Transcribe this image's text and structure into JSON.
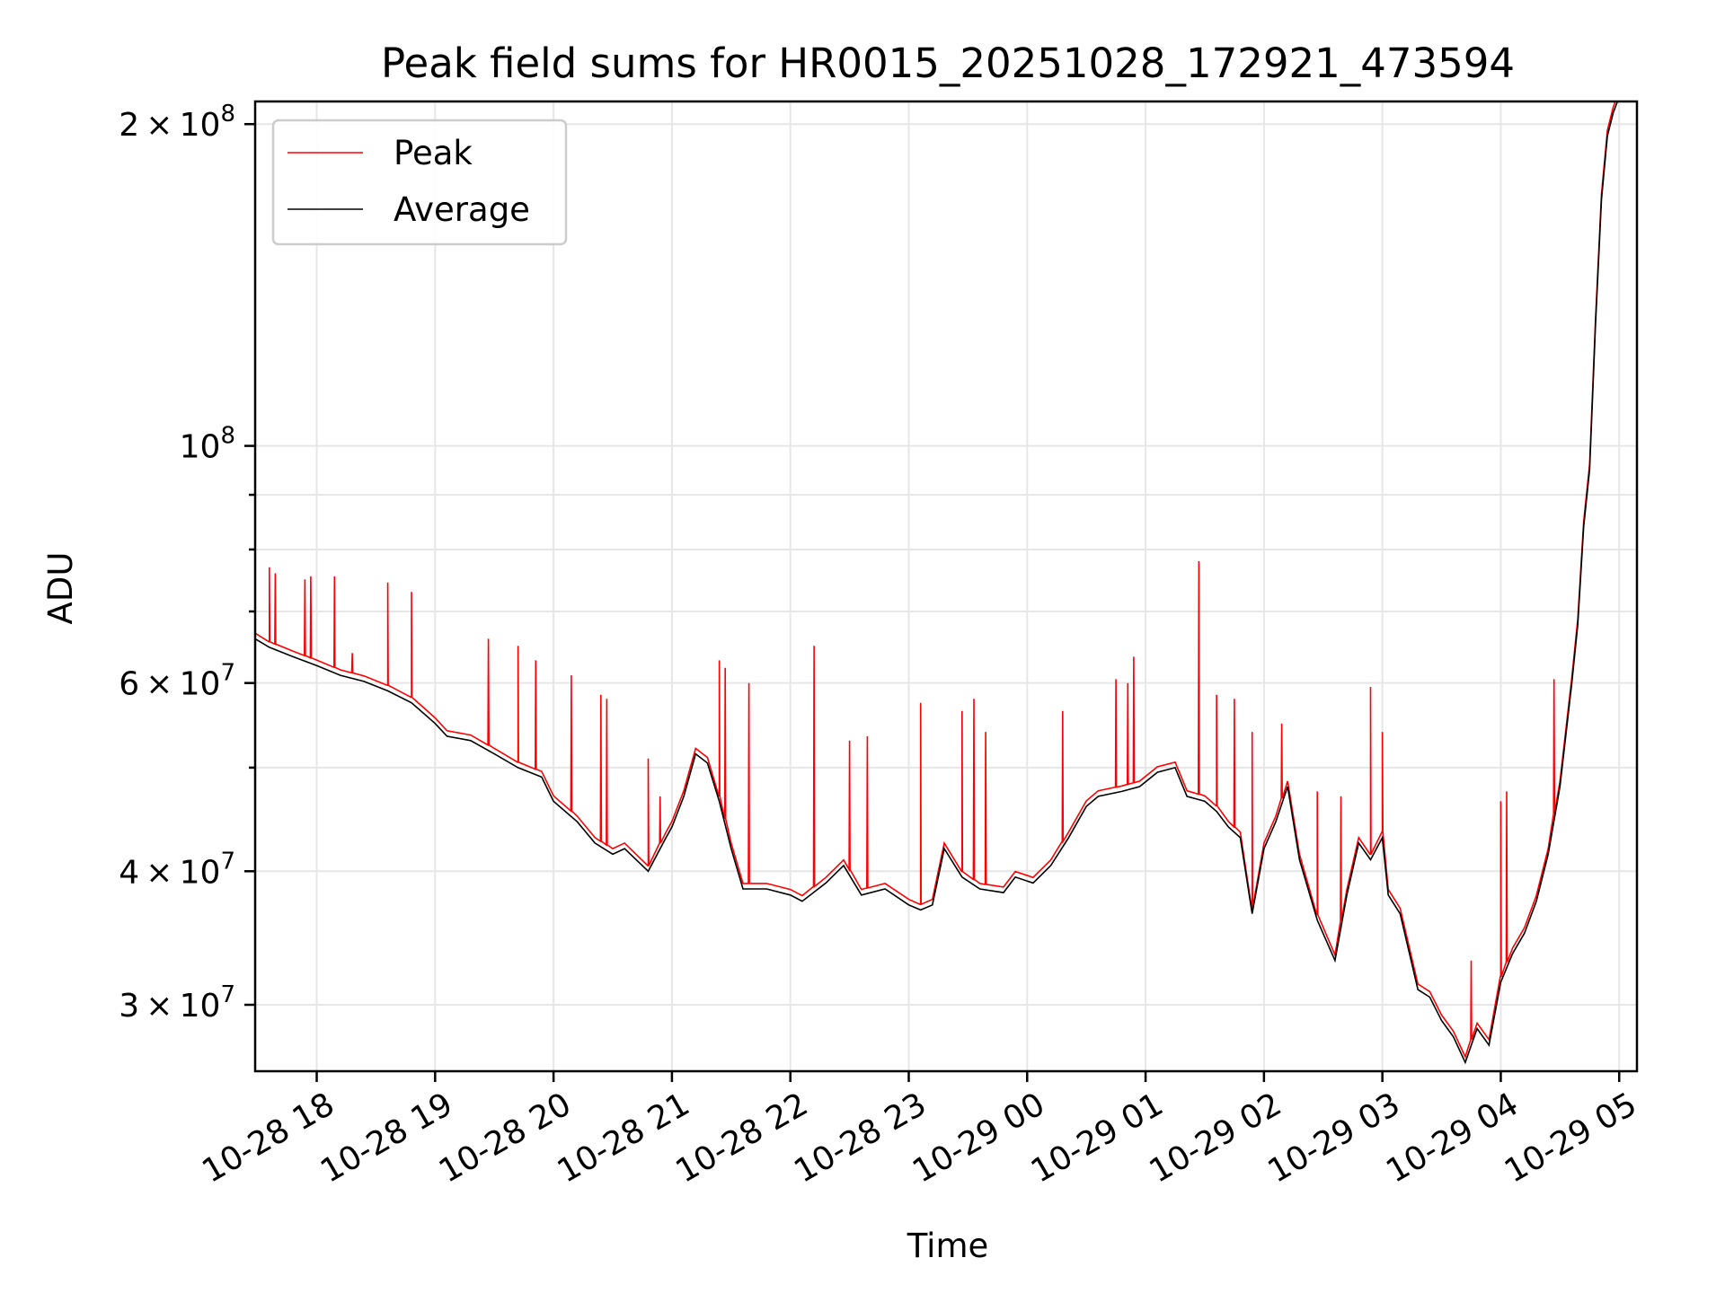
{
  "chart_data": {
    "type": "line",
    "title": "Peak field sums for HR0015_20251028_172921_473594",
    "xlabel": "Time",
    "ylabel": "ADU",
    "yscale": "log",
    "grid": true,
    "legend_position": "top-left",
    "x_unit": "hours since 2025-10-28 17:00",
    "xlim": [
      17.48,
      29.15
    ],
    "ylim": [
      26000000,
      210000000
    ],
    "x_ticks": [
      {
        "value": 18,
        "label": "10-28 18"
      },
      {
        "value": 19,
        "label": "10-28 19"
      },
      {
        "value": 20,
        "label": "10-28 20"
      },
      {
        "value": 21,
        "label": "10-28 21"
      },
      {
        "value": 22,
        "label": "10-28 22"
      },
      {
        "value": 23,
        "label": "10-28 23"
      },
      {
        "value": 24,
        "label": "10-29 00"
      },
      {
        "value": 25,
        "label": "10-29 01"
      },
      {
        "value": 26,
        "label": "10-29 02"
      },
      {
        "value": 27,
        "label": "10-29 03"
      },
      {
        "value": 28,
        "label": "10-29 04"
      },
      {
        "value": 29,
        "label": "10-29 05"
      }
    ],
    "y_ticks": [
      {
        "value": 30000000,
        "mantissa": "3",
        "exponent": "7"
      },
      {
        "value": 40000000,
        "mantissa": "4",
        "exponent": "7"
      },
      {
        "value": 60000000,
        "mantissa": "6",
        "exponent": "7"
      },
      {
        "value": 100000000,
        "mantissa": "",
        "exponent": "8"
      },
      {
        "value": 200000000,
        "mantissa": "2",
        "exponent": "8"
      }
    ],
    "y_minor_ticks": [
      50000000,
      70000000,
      80000000,
      90000000
    ],
    "base_label": "10",
    "times_symbol": "×",
    "series": [
      {
        "name": "Average",
        "color": "#000000",
        "points": [
          [
            17.48,
            66000000
          ],
          [
            17.6,
            64800000
          ],
          [
            17.8,
            63500000
          ],
          [
            18.0,
            62300000
          ],
          [
            18.2,
            61000000
          ],
          [
            18.4,
            60200000
          ],
          [
            18.6,
            59000000
          ],
          [
            18.8,
            57500000
          ],
          [
            19.0,
            55000000
          ],
          [
            19.1,
            53500000
          ],
          [
            19.3,
            53000000
          ],
          [
            19.5,
            51500000
          ],
          [
            19.7,
            50000000
          ],
          [
            19.9,
            49000000
          ],
          [
            20.0,
            46500000
          ],
          [
            20.2,
            44500000
          ],
          [
            20.35,
            42500000
          ],
          [
            20.5,
            41500000
          ],
          [
            20.6,
            42000000
          ],
          [
            20.8,
            40000000
          ],
          [
            20.95,
            43000000
          ],
          [
            21.0,
            44000000
          ],
          [
            21.1,
            47000000
          ],
          [
            21.2,
            51500000
          ],
          [
            21.3,
            50500000
          ],
          [
            21.4,
            46500000
          ],
          [
            21.5,
            42000000
          ],
          [
            21.6,
            38500000
          ],
          [
            21.8,
            38500000
          ],
          [
            22.0,
            38000000
          ],
          [
            22.1,
            37500000
          ],
          [
            22.3,
            39000000
          ],
          [
            22.45,
            40500000
          ],
          [
            22.6,
            38000000
          ],
          [
            22.8,
            38500000
          ],
          [
            23.0,
            37200000
          ],
          [
            23.1,
            36800000
          ],
          [
            23.2,
            37200000
          ],
          [
            23.3,
            42000000
          ],
          [
            23.45,
            39500000
          ],
          [
            23.6,
            38500000
          ],
          [
            23.8,
            38200000
          ],
          [
            23.9,
            39500000
          ],
          [
            24.05,
            39000000
          ],
          [
            24.2,
            40500000
          ],
          [
            24.35,
            43000000
          ],
          [
            24.5,
            46000000
          ],
          [
            24.6,
            47000000
          ],
          [
            24.8,
            47500000
          ],
          [
            24.95,
            48000000
          ],
          [
            25.1,
            49500000
          ],
          [
            25.25,
            50000000
          ],
          [
            25.35,
            47000000
          ],
          [
            25.5,
            46500000
          ],
          [
            25.6,
            45500000
          ],
          [
            25.7,
            44000000
          ],
          [
            25.8,
            43000000
          ],
          [
            25.9,
            36500000
          ],
          [
            26.0,
            42000000
          ],
          [
            26.1,
            44500000
          ],
          [
            26.2,
            48000000
          ],
          [
            26.3,
            41000000
          ],
          [
            26.45,
            36000000
          ],
          [
            26.6,
            33000000
          ],
          [
            26.7,
            38000000
          ],
          [
            26.8,
            42500000
          ],
          [
            26.9,
            41000000
          ],
          [
            27.0,
            43000000
          ],
          [
            27.05,
            38000000
          ],
          [
            27.15,
            36500000
          ],
          [
            27.3,
            31000000
          ],
          [
            27.4,
            30500000
          ],
          [
            27.5,
            29000000
          ],
          [
            27.6,
            28000000
          ],
          [
            27.7,
            26500000
          ],
          [
            27.8,
            28500000
          ],
          [
            27.9,
            27500000
          ],
          [
            28.0,
            31500000
          ],
          [
            28.1,
            33500000
          ],
          [
            28.2,
            35000000
          ],
          [
            28.3,
            37500000
          ],
          [
            28.4,
            41500000
          ],
          [
            28.5,
            48000000
          ],
          [
            28.6,
            60000000
          ],
          [
            28.65,
            68000000
          ],
          [
            28.7,
            84000000
          ],
          [
            28.75,
            95000000
          ],
          [
            28.8,
            130000000
          ],
          [
            28.85,
            170000000
          ],
          [
            28.9,
            195000000
          ],
          [
            28.95,
            205000000
          ],
          [
            29.0,
            212000000
          ]
        ]
      },
      {
        "name": "Peak",
        "color": "#ff0000",
        "spikes": [
          [
            17.6,
            77000000
          ],
          [
            17.65,
            76000000
          ],
          [
            17.9,
            75000000
          ],
          [
            17.95,
            75500000
          ],
          [
            18.15,
            75500000
          ],
          [
            18.3,
            64000000
          ],
          [
            18.6,
            74500000
          ],
          [
            18.8,
            73000000
          ],
          [
            19.45,
            66000000
          ],
          [
            19.7,
            65000000
          ],
          [
            19.85,
            63000000
          ],
          [
            20.15,
            61000000
          ],
          [
            20.4,
            58500000
          ],
          [
            20.45,
            58000000
          ],
          [
            20.8,
            51000000
          ],
          [
            20.9,
            47000000
          ],
          [
            21.4,
            63000000
          ],
          [
            21.45,
            62000000
          ],
          [
            21.65,
            60000000
          ],
          [
            22.2,
            65000000
          ],
          [
            22.5,
            53000000
          ],
          [
            22.65,
            53500000
          ],
          [
            23.1,
            57500000
          ],
          [
            23.45,
            56500000
          ],
          [
            23.55,
            58000000
          ],
          [
            23.65,
            54000000
          ],
          [
            24.3,
            56500000
          ],
          [
            24.75,
            60500000
          ],
          [
            24.85,
            60000000
          ],
          [
            24.9,
            63500000
          ],
          [
            25.45,
            78000000
          ],
          [
            25.6,
            58500000
          ],
          [
            25.75,
            58000000
          ],
          [
            25.9,
            54000000
          ],
          [
            26.15,
            55000000
          ],
          [
            26.45,
            47500000
          ],
          [
            26.65,
            47000000
          ],
          [
            26.9,
            59500000
          ],
          [
            27.0,
            54000000
          ],
          [
            27.75,
            33000000
          ],
          [
            28.0,
            46500000
          ],
          [
            28.05,
            47500000
          ],
          [
            28.45,
            60500000
          ]
        ]
      }
    ]
  },
  "legend": [
    {
      "label": "Peak",
      "color": "#ff0000"
    },
    {
      "label": "Average",
      "color": "#000000"
    }
  ]
}
